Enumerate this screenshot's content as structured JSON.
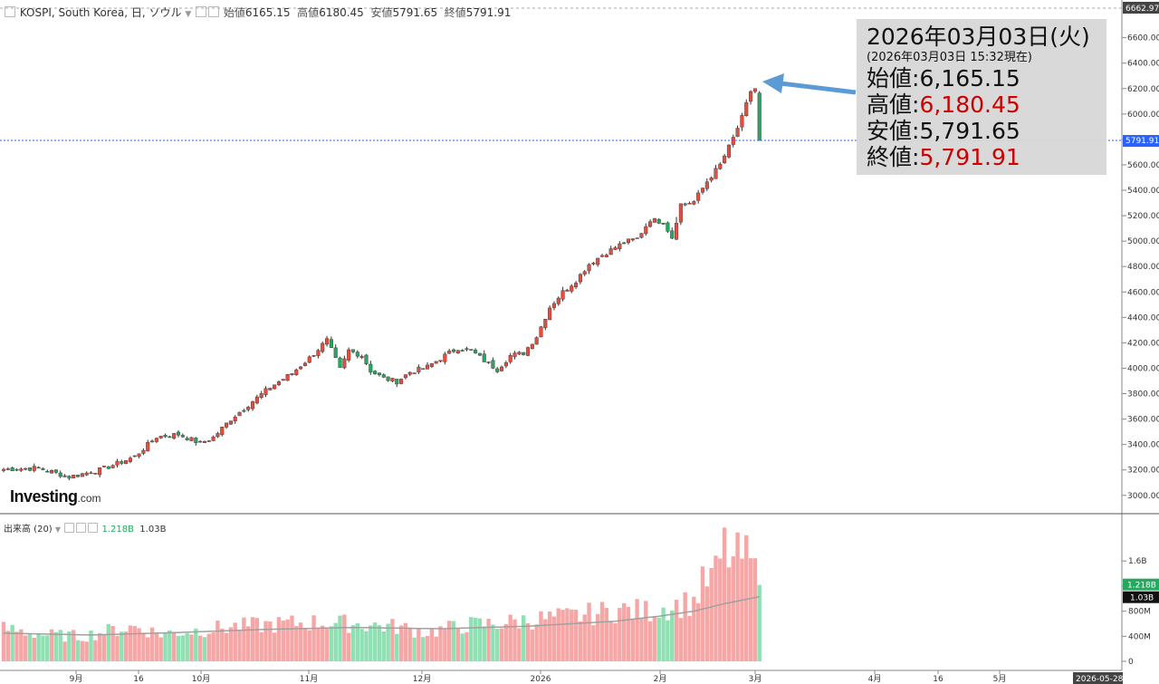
{
  "header": {
    "symbol_text": "KOSPI, South Korea, 日, ソウル",
    "open_label": "始値",
    "open_value": "6165.15",
    "high_label": "高値",
    "high_value": "6180.45",
    "low_label": "安値",
    "low_value": "5791.65",
    "close_label": "終値",
    "close_value": "5791.91"
  },
  "info_box": {
    "date": "2026年03月03日(火)",
    "sub": "(2026年03月03日 15:32現在)",
    "open_label": "始値",
    "open_value": "6,165.15",
    "high_label": "高値",
    "high_value": "6,180.45",
    "low_label": "安値",
    "low_value": "5,791.65",
    "close_label": "終値",
    "close_value": "5,791.91"
  },
  "volume_legend": {
    "label": "出来高 (20)",
    "value": "1.218B",
    "ma_value": "1.03B"
  },
  "logo": {
    "main": "Investing",
    "suffix": ".com"
  },
  "colors": {
    "up": "#e74c3c",
    "down": "#22ab5e",
    "vol_up": "#f7a6a6",
    "vol_down": "#8fe0b3",
    "ma": "#a0a0a0",
    "price_line": "#2962ff",
    "arrow": "#5b9bd5"
  },
  "chart_data": {
    "type": "candlestick",
    "price_axis": {
      "ylim": [
        2870,
        6740
      ],
      "ticks": [
        "6600.00",
        "6400.00",
        "6200.00",
        "6000.00",
        "5800.00",
        "5600.00",
        "5400.00",
        "5200.00",
        "5000.00",
        "4800.00",
        "4600.00",
        "4400.00",
        "4200.00",
        "4000.00",
        "3800.00",
        "3600.00",
        "3400.00",
        "3200.00",
        "3000.00"
      ],
      "top_label": "6662.97",
      "last_price_label": "5791.91",
      "last_price": 5791.91
    },
    "volume_axis": {
      "ylim": [
        0,
        1.95
      ],
      "ticks": [
        "1.6B",
        "1.2B",
        "800M",
        "400M",
        "0"
      ],
      "volume_label": "1.218B",
      "ma_label": "1.03B"
    },
    "x_labels": [
      "9月",
      "16",
      "10月",
      "11月",
      "12月",
      "2026",
      "2月",
      "3月",
      "4月",
      "16",
      "5月"
    ],
    "x_end_label": "2026-05-28",
    "keypoints": [
      [
        0,
        3205
      ],
      [
        8,
        3215
      ],
      [
        15,
        3145
      ],
      [
        22,
        3200
      ],
      [
        26,
        3250
      ],
      [
        30,
        3305
      ],
      [
        35,
        3460
      ],
      [
        40,
        3480
      ],
      [
        45,
        3410
      ],
      [
        48,
        3455
      ],
      [
        52,
        3600
      ],
      [
        57,
        3740
      ],
      [
        61,
        3850
      ],
      [
        66,
        3960
      ],
      [
        70,
        4080
      ],
      [
        74,
        4220
      ],
      [
        77,
        3990
      ],
      [
        79,
        4140
      ],
      [
        82,
        4100
      ],
      [
        84,
        3980
      ],
      [
        87,
        3920
      ],
      [
        90,
        3895
      ],
      [
        93,
        3970
      ],
      [
        97,
        4010
      ],
      [
        101,
        4100
      ],
      [
        104,
        4160
      ],
      [
        107,
        4140
      ],
      [
        110,
        4060
      ],
      [
        113,
        3990
      ],
      [
        116,
        4100
      ],
      [
        119,
        4120
      ],
      [
        122,
        4250
      ],
      [
        125,
        4480
      ],
      [
        128,
        4600
      ],
      [
        131,
        4690
      ],
      [
        134,
        4820
      ],
      [
        137,
        4890
      ],
      [
        139,
        4930
      ],
      [
        142,
        4990
      ],
      [
        145,
        5020
      ],
      [
        148,
        5170
      ],
      [
        151,
        5150
      ],
      [
        153,
        5030
      ],
      [
        155,
        5290
      ],
      [
        158,
        5310
      ],
      [
        161,
        5470
      ],
      [
        164,
        5600
      ],
      [
        167,
        5810
      ],
      [
        169,
        5970
      ],
      [
        171,
        6180
      ],
      [
        172,
        6200
      ],
      [
        173,
        6165
      ]
    ],
    "candles": [
      {
        "o": 6165.15,
        "h": 6180.45,
        "l": 5791.65,
        "c": 5791.91
      }
    ],
    "volume_keypoints": [
      [
        0,
        0.52
      ],
      [
        10,
        0.42
      ],
      [
        18,
        0.4
      ],
      [
        25,
        0.5
      ],
      [
        30,
        0.55
      ],
      [
        36,
        0.44
      ],
      [
        45,
        0.5
      ],
      [
        52,
        0.55
      ],
      [
        60,
        0.58
      ],
      [
        70,
        0.62
      ],
      [
        80,
        0.6
      ],
      [
        90,
        0.55
      ],
      [
        97,
        0.46
      ],
      [
        106,
        0.58
      ],
      [
        113,
        0.6
      ],
      [
        120,
        0.66
      ],
      [
        128,
        0.7
      ],
      [
        135,
        0.76
      ],
      [
        141,
        0.82
      ],
      [
        147,
        0.8
      ],
      [
        153,
        0.88
      ],
      [
        158,
        0.95
      ],
      [
        160,
        1.22
      ],
      [
        163,
        1.4
      ],
      [
        165,
        1.82
      ],
      [
        167,
        1.6
      ],
      [
        169,
        1.7
      ],
      [
        171,
        1.58
      ],
      [
        173,
        1.218
      ]
    ],
    "ma_keypoints": [
      [
        0,
        0.45
      ],
      [
        20,
        0.42
      ],
      [
        40,
        0.46
      ],
      [
        60,
        0.51
      ],
      [
        80,
        0.54
      ],
      [
        100,
        0.52
      ],
      [
        120,
        0.56
      ],
      [
        140,
        0.64
      ],
      [
        150,
        0.72
      ],
      [
        158,
        0.8
      ],
      [
        165,
        0.92
      ],
      [
        173,
        1.03
      ]
    ]
  }
}
